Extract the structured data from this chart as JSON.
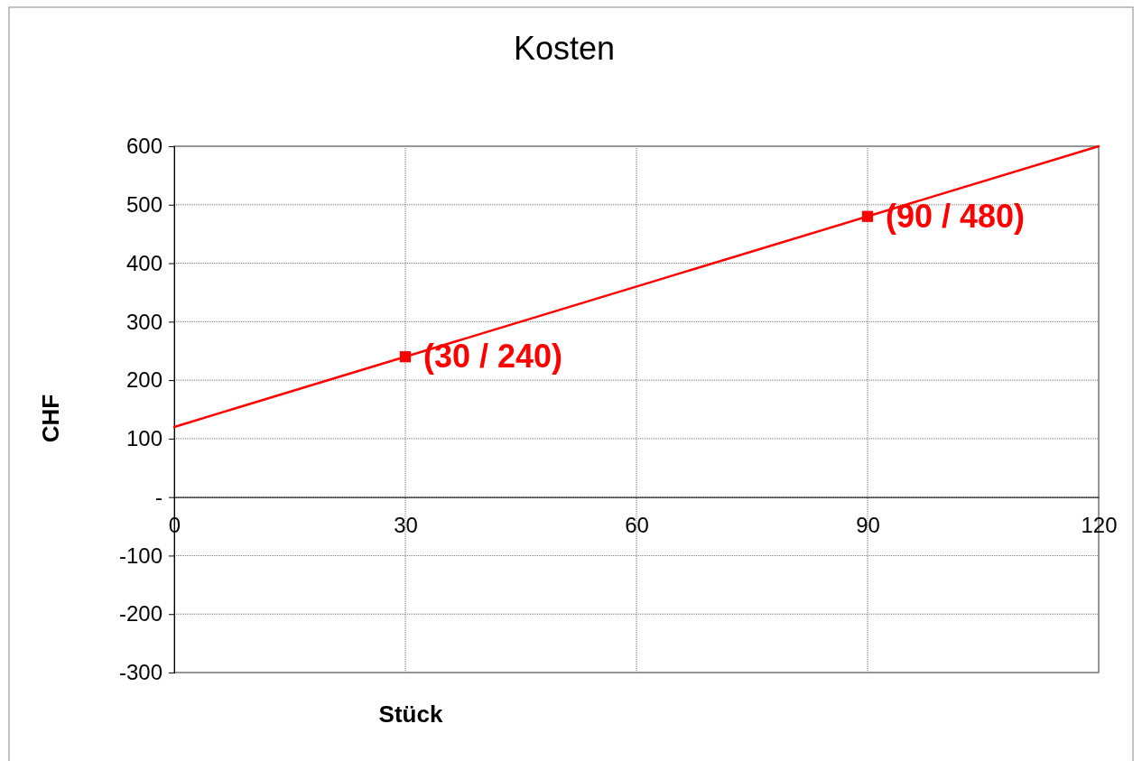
{
  "chart_data": {
    "type": "line",
    "title": "Kosten",
    "xlabel": "Stück",
    "ylabel": "CHF",
    "xlim": [
      0,
      120
    ],
    "xticks": [
      0,
      30,
      60,
      90,
      120
    ],
    "ylim": [
      -300,
      600
    ],
    "yticks": [
      -300,
      -200,
      -100,
      {
        "value": 0,
        "label": "-"
      },
      100,
      200,
      300,
      400,
      500,
      600
    ],
    "grid": true,
    "series": [
      {
        "color": "#ff0000",
        "x": [
          0,
          120
        ],
        "values": [
          120,
          600
        ],
        "line_style": "solid"
      },
      {
        "type": "scatter",
        "color": "#ff0000",
        "x": [
          30,
          90
        ],
        "values": [
          240,
          480
        ],
        "marker": "square"
      }
    ],
    "annotations": [
      {
        "text": "(30 / 240)",
        "x": 30,
        "y": 240
      },
      {
        "text": "(90 / 480)",
        "x": 90,
        "y": 480
      }
    ]
  }
}
